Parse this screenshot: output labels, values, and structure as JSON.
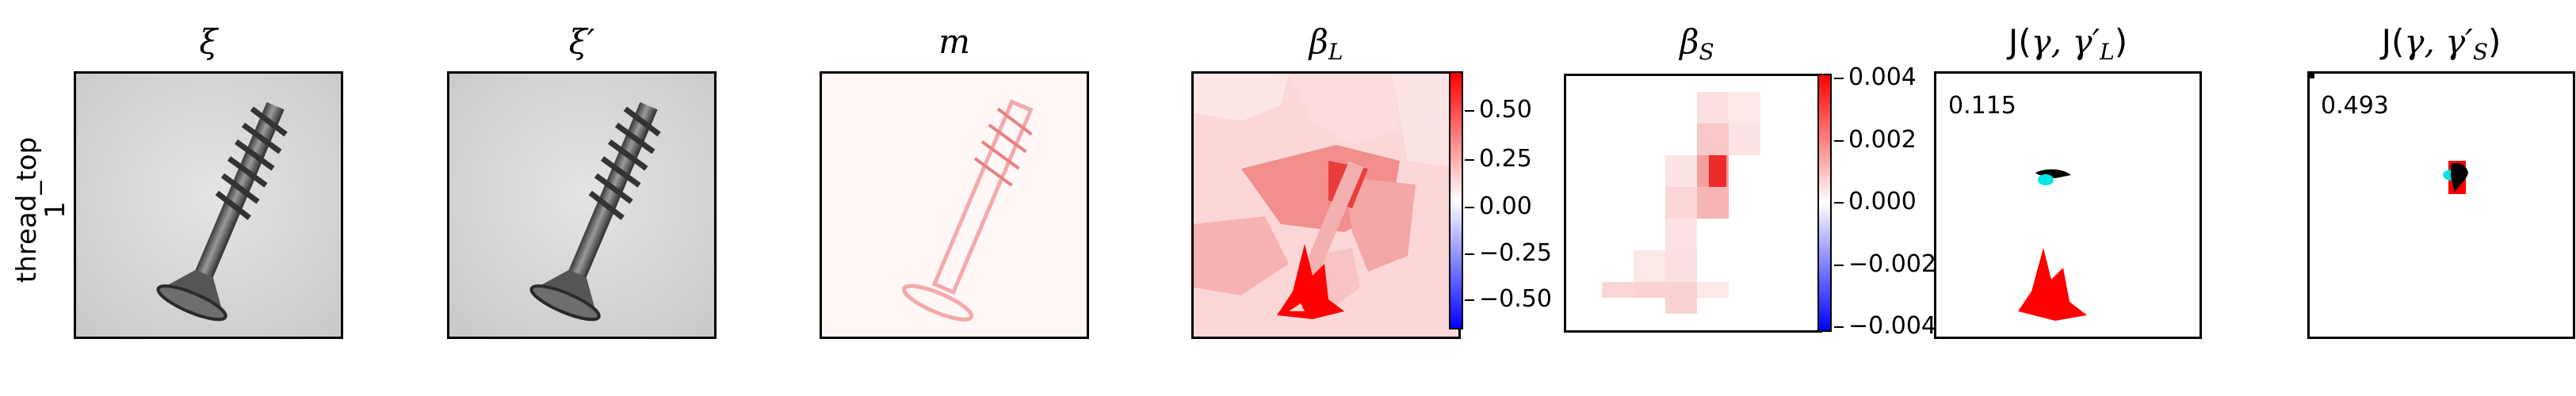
{
  "row_label": [
    "thread_top",
    "1"
  ],
  "panels": [
    {
      "id": "xi",
      "title": "ξ"
    },
    {
      "id": "xi-prime",
      "title": "ξ′"
    },
    {
      "id": "m",
      "title": "m"
    },
    {
      "id": "beta-l",
      "title": "β",
      "subscript": "L"
    },
    {
      "id": "beta-s",
      "title": "β",
      "subscript": "S"
    },
    {
      "id": "j-l",
      "title_prefix": "J(",
      "title_math": "γ, γ′",
      "title_sub": "L",
      "title_suffix": ")",
      "score": "0.115"
    },
    {
      "id": "j-s",
      "title_prefix": "J(",
      "title_math": "γ, γ′",
      "title_sub": "S",
      "title_suffix": ")",
      "score": "0.493"
    }
  ],
  "colorbar_l": {
    "ticks": [
      "0.50",
      "0.25",
      "0.00",
      "−0.25",
      "−0.50"
    ],
    "range": [
      -0.65,
      0.65
    ]
  },
  "colorbar_s": {
    "ticks": [
      "0.004",
      "0.002",
      "0.000",
      "−0.002",
      "−0.004"
    ],
    "range": [
      -0.0042,
      0.0042
    ]
  },
  "colors": {
    "positive": "#ff0000",
    "negative": "#0000ff",
    "cyan": "#00e5e5",
    "black": "#000000"
  }
}
